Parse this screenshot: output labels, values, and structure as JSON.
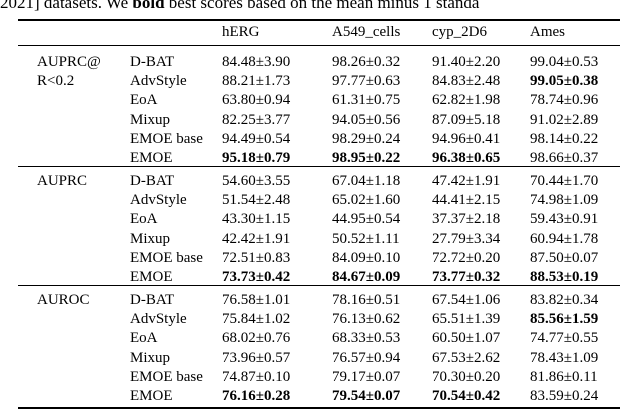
{
  "caption": {
    "prefix": "2021] datasets. We ",
    "bold_word": "bold",
    "suffix": " best scores based on the mean minus 1 standa"
  },
  "table": {
    "columns": [
      "hERG",
      "A549_cells",
      "cyp_2D6",
      "Ames"
    ],
    "groups": [
      {
        "metric_line1": "AUPRC@",
        "metric_line2": "R<0.2",
        "rows": [
          {
            "method": "D-BAT",
            "values": [
              "84.48±3.90",
              "98.26±0.32",
              "91.40±2.20",
              "99.04±0.53"
            ],
            "bold": [
              false,
              false,
              false,
              false
            ]
          },
          {
            "method": "AdvStyle",
            "values": [
              "88.21±1.73",
              "97.77±0.63",
              "84.83±2.48",
              "99.05±0.38"
            ],
            "bold": [
              false,
              false,
              false,
              true
            ]
          },
          {
            "method": "EoA",
            "values": [
              "63.80±0.94",
              "61.31±0.75",
              "62.82±1.98",
              "78.74±0.96"
            ],
            "bold": [
              false,
              false,
              false,
              false
            ]
          },
          {
            "method": "Mixup",
            "values": [
              "82.25±3.77",
              "94.05±0.56",
              "87.09±5.18",
              "91.02±2.89"
            ],
            "bold": [
              false,
              false,
              false,
              false
            ]
          },
          {
            "method": "EMOE base",
            "values": [
              "94.49±0.54",
              "98.29±0.24",
              "94.96±0.41",
              "98.14±0.22"
            ],
            "bold": [
              false,
              false,
              false,
              false
            ]
          },
          {
            "method": "EMOE",
            "values": [
              "95.18±0.79",
              "98.95±0.22",
              "96.38±0.65",
              "98.66±0.37"
            ],
            "bold": [
              true,
              true,
              true,
              false
            ]
          }
        ]
      },
      {
        "metric_line1": "AUPRC",
        "metric_line2": "",
        "rows": [
          {
            "method": "D-BAT",
            "values": [
              "54.60±3.55",
              "67.04±1.18",
              "47.42±1.91",
              "70.44±1.70"
            ],
            "bold": [
              false,
              false,
              false,
              false
            ]
          },
          {
            "method": "AdvStyle",
            "values": [
              "51.54±2.48",
              "65.02±1.60",
              "44.41±2.15",
              "74.98±1.09"
            ],
            "bold": [
              false,
              false,
              false,
              false
            ]
          },
          {
            "method": "EoA",
            "values": [
              "43.30±1.15",
              "44.95±0.54",
              "37.37±2.18",
              "59.43±0.91"
            ],
            "bold": [
              false,
              false,
              false,
              false
            ]
          },
          {
            "method": "Mixup",
            "values": [
              "42.42±1.91",
              "50.52±1.11",
              "27.79±3.34",
              "60.94±1.78"
            ],
            "bold": [
              false,
              false,
              false,
              false
            ]
          },
          {
            "method": "EMOE base",
            "values": [
              "72.51±0.83",
              "84.09±0.10",
              "72.72±0.20",
              "87.50±0.07"
            ],
            "bold": [
              false,
              false,
              false,
              false
            ]
          },
          {
            "method": "EMOE",
            "values": [
              "73.73±0.42",
              "84.67±0.09",
              "73.77±0.32",
              "88.53±0.19"
            ],
            "bold": [
              true,
              true,
              true,
              true
            ]
          }
        ]
      },
      {
        "metric_line1": "AUROC",
        "metric_line2": "",
        "rows": [
          {
            "method": "D-BAT",
            "values": [
              "76.58±1.01",
              "78.16±0.51",
              "67.54±1.06",
              "83.82±0.34"
            ],
            "bold": [
              false,
              false,
              false,
              false
            ]
          },
          {
            "method": "AdvStyle",
            "values": [
              "75.84±1.02",
              "76.13±0.62",
              "65.51±1.39",
              "85.56±1.59"
            ],
            "bold": [
              false,
              false,
              false,
              true
            ]
          },
          {
            "method": "EoA",
            "values": [
              "68.02±0.76",
              "68.33±0.53",
              "60.50±1.07",
              "74.77±0.55"
            ],
            "bold": [
              false,
              false,
              false,
              false
            ]
          },
          {
            "method": "Mixup",
            "values": [
              "73.96±0.57",
              "76.57±0.94",
              "67.53±2.62",
              "78.43±1.09"
            ],
            "bold": [
              false,
              false,
              false,
              false
            ]
          },
          {
            "method": "EMOE base",
            "values": [
              "74.87±0.10",
              "79.17±0.07",
              "70.30±0.20",
              "81.86±0.11"
            ],
            "bold": [
              false,
              false,
              false,
              false
            ]
          },
          {
            "method": "EMOE",
            "values": [
              "76.16±0.28",
              "79.54±0.07",
              "70.54±0.42",
              "83.59±0.24"
            ],
            "bold": [
              true,
              true,
              true,
              false
            ]
          }
        ]
      }
    ]
  }
}
